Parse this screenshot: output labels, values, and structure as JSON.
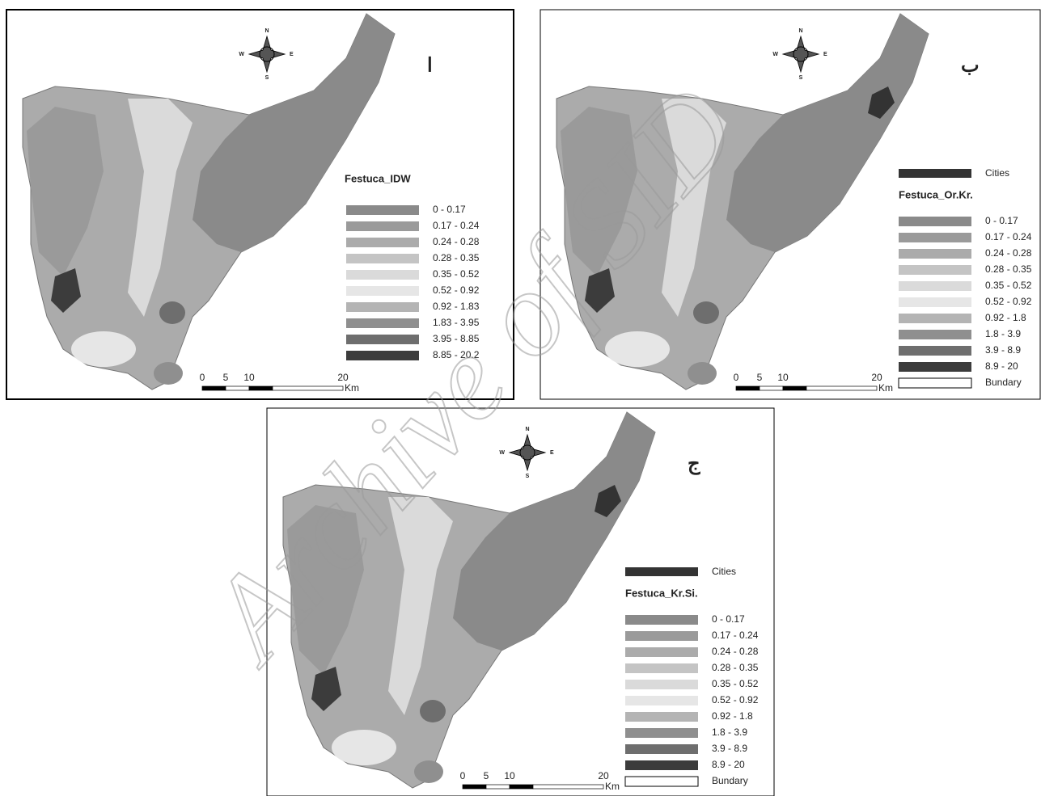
{
  "panels": [
    {
      "label": "ا",
      "compass": [
        "N",
        "S",
        "W",
        "E"
      ],
      "legend_title": "Festuca_IDW",
      "legend": [
        {
          "label": "0 - 0.17",
          "color": "#8a8a8a"
        },
        {
          "label": "0.17 - 0.24",
          "color": "#9a9a9a"
        },
        {
          "label": "0.24 - 0.28",
          "color": "#ababab"
        },
        {
          "label": "0.28 - 0.35",
          "color": "#c4c4c4"
        },
        {
          "label": "0.35 - 0.52",
          "color": "#dadada"
        },
        {
          "label": "0.52 - 0.92",
          "color": "#e6e6e6"
        },
        {
          "label": "0.92 - 1.83",
          "color": "#b4b4b4"
        },
        {
          "label": "1.83 - 3.95",
          "color": "#8f8f8f"
        },
        {
          "label": "3.95 - 8.85",
          "color": "#6e6e6e"
        },
        {
          "label": "8.85 - 20.2",
          "color": "#3c3c3c"
        }
      ],
      "scale": [
        "0",
        "5",
        "10",
        "20"
      ],
      "unit": "Km"
    },
    {
      "label": "ب",
      "compass": [
        "N",
        "S",
        "W",
        "E"
      ],
      "cities": "Cities",
      "legend_title": "Festuca_Or.Kr.",
      "legend": [
        {
          "label": "0 - 0.17",
          "color": "#8a8a8a"
        },
        {
          "label": "0.17 - 0.24",
          "color": "#9a9a9a"
        },
        {
          "label": "0.24 - 0.28",
          "color": "#ababab"
        },
        {
          "label": "0.28 - 0.35",
          "color": "#c4c4c4"
        },
        {
          "label": "0.35 - 0.52",
          "color": "#dadada"
        },
        {
          "label": "0.52 - 0.92",
          "color": "#e6e6e6"
        },
        {
          "label": "0.92 - 1.8",
          "color": "#b4b4b4"
        },
        {
          "label": "1.8 - 3.9",
          "color": "#8f8f8f"
        },
        {
          "label": "3.9 - 8.9",
          "color": "#6e6e6e"
        },
        {
          "label": "8.9 - 20",
          "color": "#3c3c3c"
        }
      ],
      "boundary": "Bundary",
      "scale": [
        "0",
        "5",
        "10",
        "20"
      ],
      "unit": "Km"
    },
    {
      "label": "ج",
      "compass": [
        "N",
        "S",
        "W",
        "E"
      ],
      "cities": "Cities",
      "legend_title": "Festuca_Kr.Si.",
      "legend": [
        {
          "label": "0 - 0.17",
          "color": "#8a8a8a"
        },
        {
          "label": "0.17 - 0.24",
          "color": "#9a9a9a"
        },
        {
          "label": "0.24 - 0.28",
          "color": "#ababab"
        },
        {
          "label": "0.28 - 0.35",
          "color": "#c4c4c4"
        },
        {
          "label": "0.35 - 0.52",
          "color": "#dadada"
        },
        {
          "label": "0.52 - 0.92",
          "color": "#e6e6e6"
        },
        {
          "label": "0.92 - 1.8",
          "color": "#b4b4b4"
        },
        {
          "label": "1.8 - 3.9",
          "color": "#8f8f8f"
        },
        {
          "label": "3.9 - 8.9",
          "color": "#6e6e6e"
        },
        {
          "label": "8.9 - 20",
          "color": "#3c3c3c"
        }
      ],
      "boundary": "Bundary",
      "scale": [
        "0",
        "5",
        "10",
        "20"
      ],
      "unit": "Km"
    }
  ],
  "watermark": "Archive of SID"
}
